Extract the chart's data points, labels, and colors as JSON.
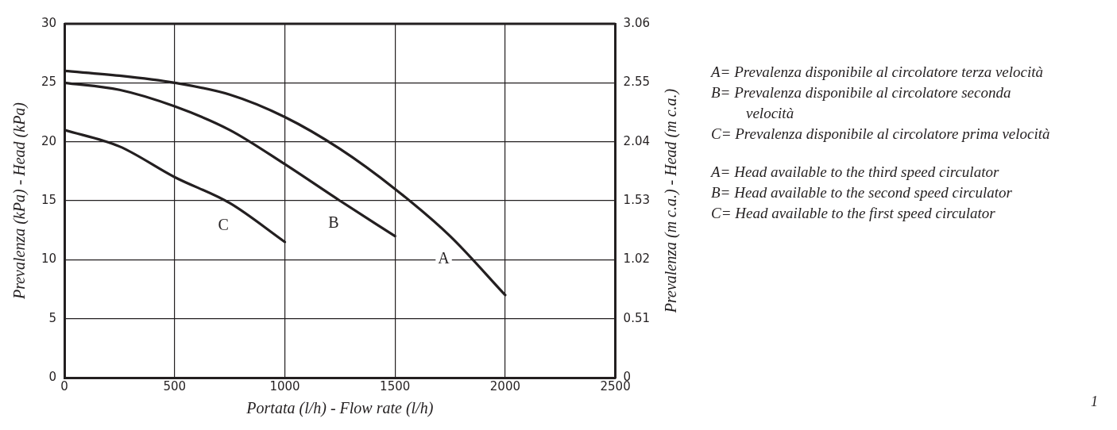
{
  "chart_data": {
    "type": "line",
    "xlabel": "Portata (l/h) - Flow rate (l/h)",
    "ylabel": "Prevalenza (kPa) - Head (kPa)",
    "y2label": "Prevalenza (m c.a.) - Head (m c.a.)",
    "xlim": [
      0,
      2500
    ],
    "xticks": [
      0,
      500,
      1000,
      1500,
      2000,
      2500
    ],
    "ylim": [
      0,
      30
    ],
    "yticks": [
      0,
      5,
      10,
      15,
      20,
      25,
      30
    ],
    "y2lim": [
      0,
      3.06
    ],
    "y2ticks": [
      0,
      0.51,
      1.02,
      1.53,
      2.04,
      2.55,
      3.06
    ],
    "grid": true,
    "legend": false,
    "marker": "none",
    "line_style": "solid",
    "series": [
      {
        "name": "A",
        "color": "#231f20",
        "x": [
          0,
          250,
          500,
          750,
          1000,
          1250,
          1500,
          1750,
          2000
        ],
        "values": [
          26,
          25.6,
          25,
          24,
          22.1,
          19.4,
          16,
          12,
          7
        ]
      },
      {
        "name": "B",
        "color": "#231f20",
        "x": [
          0,
          250,
          500,
          750,
          1000,
          1250,
          1500
        ],
        "values": [
          25,
          24.4,
          23,
          21,
          18.1,
          15,
          12
        ]
      },
      {
        "name": "C",
        "color": "#231f20",
        "x": [
          0,
          250,
          500,
          750,
          1000
        ],
        "values": [
          21,
          19.6,
          17,
          14.8,
          11.5
        ]
      }
    ],
    "annotations": [
      "A= Prevalenza disponibile al circolatore terza velocità",
      "B= Prevalenza disponibile al circolatore seconda velocità",
      "C= Prevalenza disponibile al circolatore prima velocità",
      "A= Head available to the third speed circulator",
      "B= Head available to the second speed circulator",
      "C= Head available to the first speed circulator",
      "1"
    ]
  }
}
